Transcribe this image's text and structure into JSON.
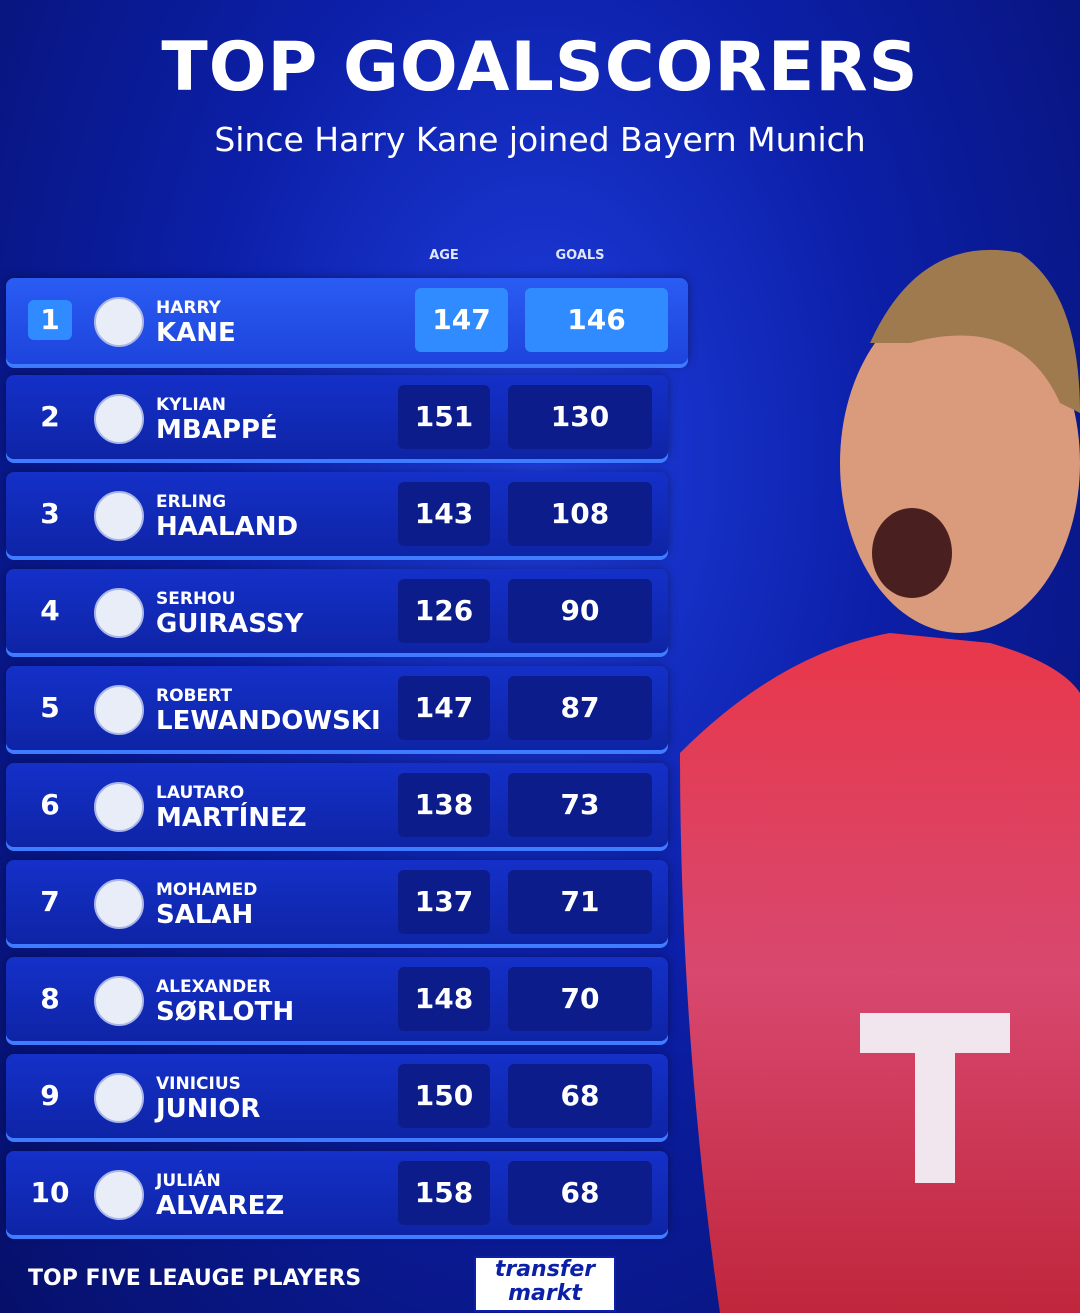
{
  "header": {
    "title": "TOP GOALSCORERS",
    "subtitle": "Since Harry Kane joined Bayern Munich"
  },
  "table": {
    "columns": [
      "AGE",
      "GOALS"
    ],
    "rows": [
      {
        "rank": 1,
        "first_name": "HARRY",
        "last_name": "KANE",
        "age": 147,
        "goals": 146
      },
      {
        "rank": 2,
        "first_name": "KYLIAN",
        "last_name": "MBAPPÉ",
        "age": 151,
        "goals": 130
      },
      {
        "rank": 3,
        "first_name": "ERLING",
        "last_name": "HAALAND",
        "age": 143,
        "goals": 108
      },
      {
        "rank": 4,
        "first_name": "SERHOU",
        "last_name": "GUIRASSY",
        "age": 126,
        "goals": 90
      },
      {
        "rank": 5,
        "first_name": "ROBERT",
        "last_name": "LEWANDOWSKI",
        "age": 147,
        "goals": 87
      },
      {
        "rank": 6,
        "first_name": "LAUTARO",
        "last_name": "MARTÍNEZ",
        "age": 138,
        "goals": 73
      },
      {
        "rank": 7,
        "first_name": "MOHAMED",
        "last_name": "SALAH",
        "age": 137,
        "goals": 71
      },
      {
        "rank": 8,
        "first_name": "ALEXANDER",
        "last_name": "SØRLOTH",
        "age": 148,
        "goals": 70
      },
      {
        "rank": 9,
        "first_name": "VINICIUS",
        "last_name": "JUNIOR",
        "age": 150,
        "goals": 68
      },
      {
        "rank": 10,
        "first_name": "JULIÁN",
        "last_name": "ALVAREZ",
        "age": 158,
        "goals": 68
      }
    ]
  },
  "footer": {
    "note": "TOP FIVE LEAUGE PLAYERS",
    "logo": [
      "transfer",
      "markt"
    ]
  }
}
